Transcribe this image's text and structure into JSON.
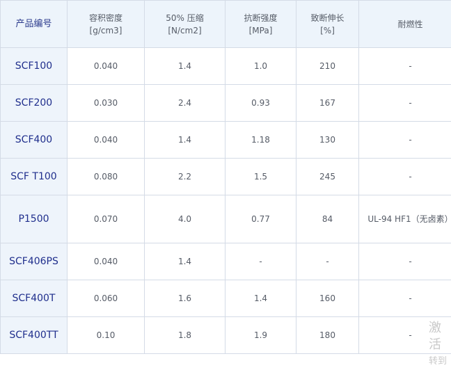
{
  "table": {
    "headers": [
      {
        "line1": "产品编号",
        "line2": ""
      },
      {
        "line1": "容积密度",
        "line2": "[g/cm3]"
      },
      {
        "line1": "50% 压缩",
        "line2": "[N/cm2]"
      },
      {
        "line1": "抗断强度",
        "line2": "[MPa]"
      },
      {
        "line1": "致断伸长",
        "line2": "[%]"
      },
      {
        "line1": "耐燃性",
        "line2": ""
      }
    ],
    "rows": [
      {
        "model": "SCF100",
        "density": "0.040",
        "compression": "1.4",
        "strength": "1.0",
        "elongation": "210",
        "flame": "-"
      },
      {
        "model": "SCF200",
        "density": "0.030",
        "compression": "2.4",
        "strength": "0.93",
        "elongation": "167",
        "flame": "-"
      },
      {
        "model": "SCF400",
        "density": "0.040",
        "compression": "1.4",
        "strength": "1.18",
        "elongation": "130",
        "flame": "-"
      },
      {
        "model": "SCF T100",
        "density": "0.080",
        "compression": "2.2",
        "strength": "1.5",
        "elongation": "245",
        "flame": "-"
      },
      {
        "model": "P1500",
        "density": "0.070",
        "compression": "4.0",
        "strength": "0.77",
        "elongation": "84",
        "flame": "UL-94 HF1（无卤素）"
      },
      {
        "model": "SCF406PS",
        "density": "0.040",
        "compression": "1.4",
        "strength": "-",
        "elongation": "-",
        "flame": "-"
      },
      {
        "model": "SCF400T",
        "density": "0.060",
        "compression": "1.6",
        "strength": "1.4",
        "elongation": "160",
        "flame": "-"
      },
      {
        "model": "SCF400TT",
        "density": "0.10",
        "compression": "1.8",
        "strength": "1.9",
        "elongation": "180",
        "flame": "-"
      }
    ]
  },
  "watermark": {
    "line1": "激活",
    "line2": "转到"
  }
}
